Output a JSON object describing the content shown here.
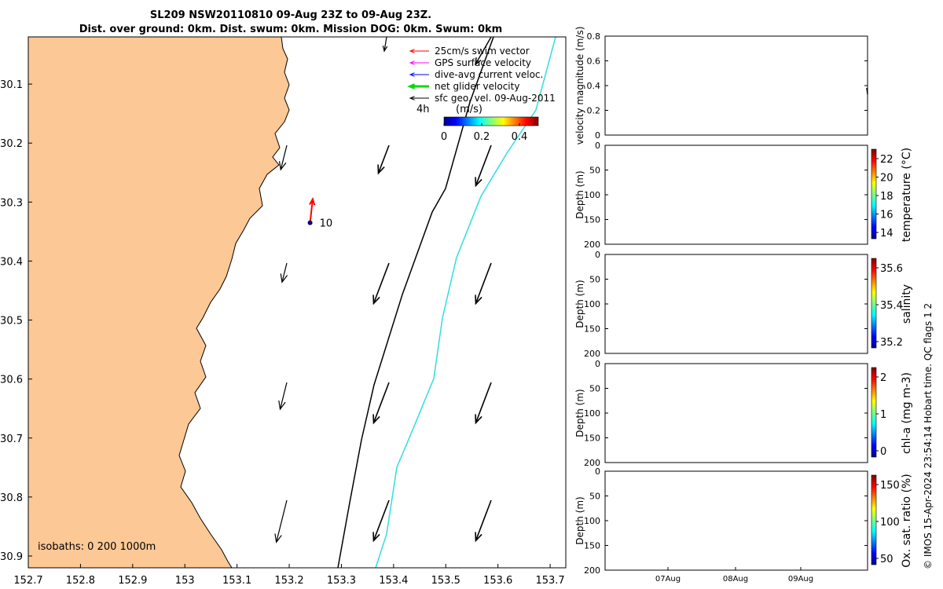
{
  "header": {
    "title_line1": "SL209 NSW20110810 09-Aug 23Z to 09-Aug 23Z.",
    "title_line2": "Dist. over ground: 0km. Dist. swum: 0km. Mission DOG: 0km. Swum: 0km"
  },
  "colors": {
    "land": "#fbc896",
    "swim_vector": "#ff0000",
    "gps_velocity": "#ff00ff",
    "dive_current": "#0000ff",
    "net_velocity": "#00dd00",
    "geo_velocity": "#000000",
    "isobath_200": "#000000",
    "isobath_1000": "#33dddd",
    "glider_marker": "#000080"
  },
  "map": {
    "lon_ticks": [
      "152.7",
      "152.8",
      "152.9",
      "153",
      "153.1",
      "153.2",
      "153.3",
      "153.4",
      "153.5",
      "153.6",
      "153.7"
    ],
    "lat_ticks": [
      "30.1",
      "30.2",
      "30.3",
      "30.4",
      "30.5",
      "30.6",
      "30.7",
      "30.8",
      "30.9"
    ],
    "lon_range": [
      152.7,
      153.73
    ],
    "lat_range": [
      30.02,
      30.92
    ],
    "legend": [
      {
        "label": "25cm/s swim vector",
        "color": "#ff0000"
      },
      {
        "label": "GPS surface velocity",
        "color": "#ff00ff"
      },
      {
        "label": "dive-avg current veloc.",
        "color": "#0000ff"
      },
      {
        "label": "net glider velocity",
        "color": "#00dd00"
      },
      {
        "label": "sfc geo. vel. 09-Aug-2011",
        "color": "#000000"
      }
    ],
    "duration_label": "4h",
    "colorbar_label": "(m/s)",
    "colorbar_ticks": [
      "0",
      "0.2",
      "0.4"
    ],
    "isobaths_label": "isobaths: 0   200  1000m",
    "glider_label": "10",
    "glider_position": {
      "lon": 153.24,
      "lat": 30.335
    },
    "swim_vector_tip": {
      "lon": 153.245,
      "lat": 30.295
    }
  },
  "chart_data": [
    {
      "type": "line",
      "ylabel": "velocity magnitude (m/s)",
      "ylim": [
        0,
        0.8
      ],
      "yticks": [
        "0",
        "0.2",
        "0.4",
        "0.6",
        "0.8"
      ]
    },
    {
      "type": "heatmap",
      "ylabel": "Depth (m)",
      "yticks": [
        "0",
        "50",
        "100",
        "150",
        "200"
      ],
      "colorbar_label": "temperature (°C)",
      "colorbar_ticks": [
        "14",
        "16",
        "18",
        "20",
        "22"
      ]
    },
    {
      "type": "heatmap",
      "ylabel": "Depth (m)",
      "yticks": [
        "0",
        "50",
        "100",
        "150",
        "200"
      ],
      "colorbar_label": "salinity",
      "colorbar_ticks": [
        "35.2",
        "35.4",
        "35.6"
      ]
    },
    {
      "type": "heatmap",
      "ylabel": "Depth (m)",
      "yticks": [
        "0",
        "50",
        "100",
        "150",
        "200"
      ],
      "colorbar_label": "chl-a (mg m-3)",
      "colorbar_ticks": [
        "0",
        "1",
        "2"
      ]
    },
    {
      "type": "heatmap",
      "ylabel": "Depth (m)",
      "yticks": [
        "0",
        "50",
        "100",
        "150",
        "200"
      ],
      "colorbar_label": "Ox. sat. ratio (%)",
      "colorbar_ticks": [
        "50",
        "100",
        "150"
      ],
      "xticks": [
        "07Aug",
        "08Aug",
        "09Aug"
      ]
    }
  ],
  "credit": "© IMOS 15-Apr-2024 23:54:14 Hobart time. QC flags 1  2"
}
